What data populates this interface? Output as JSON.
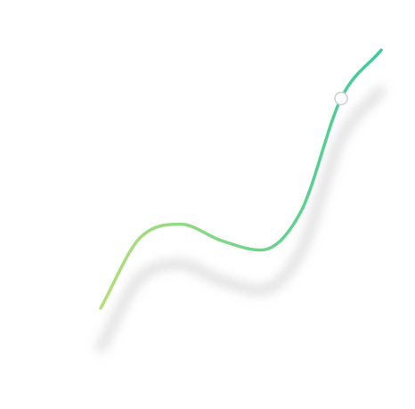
{
  "chart_data": {
    "type": "line",
    "title": "",
    "xlabel": "",
    "ylabel": "",
    "grid": false,
    "legend": "top-center",
    "x": [
      0,
      1,
      2,
      3,
      4,
      5,
      6,
      7
    ],
    "series": [
      {
        "name": "",
        "values": [
          10,
          32,
          36,
          31,
          28,
          40,
          75,
          90
        ]
      }
    ],
    "xlim": [
      0,
      7
    ],
    "ylim": [
      0,
      100
    ],
    "highlight_index": 6,
    "colors": {
      "line_start": "#b4e07a",
      "line_end": "#3ec99a",
      "shadow": "#d4d4d4",
      "marker_fill": "#ffffff",
      "marker_stroke": "#cfcfcf",
      "background": "#ffffff"
    }
  }
}
